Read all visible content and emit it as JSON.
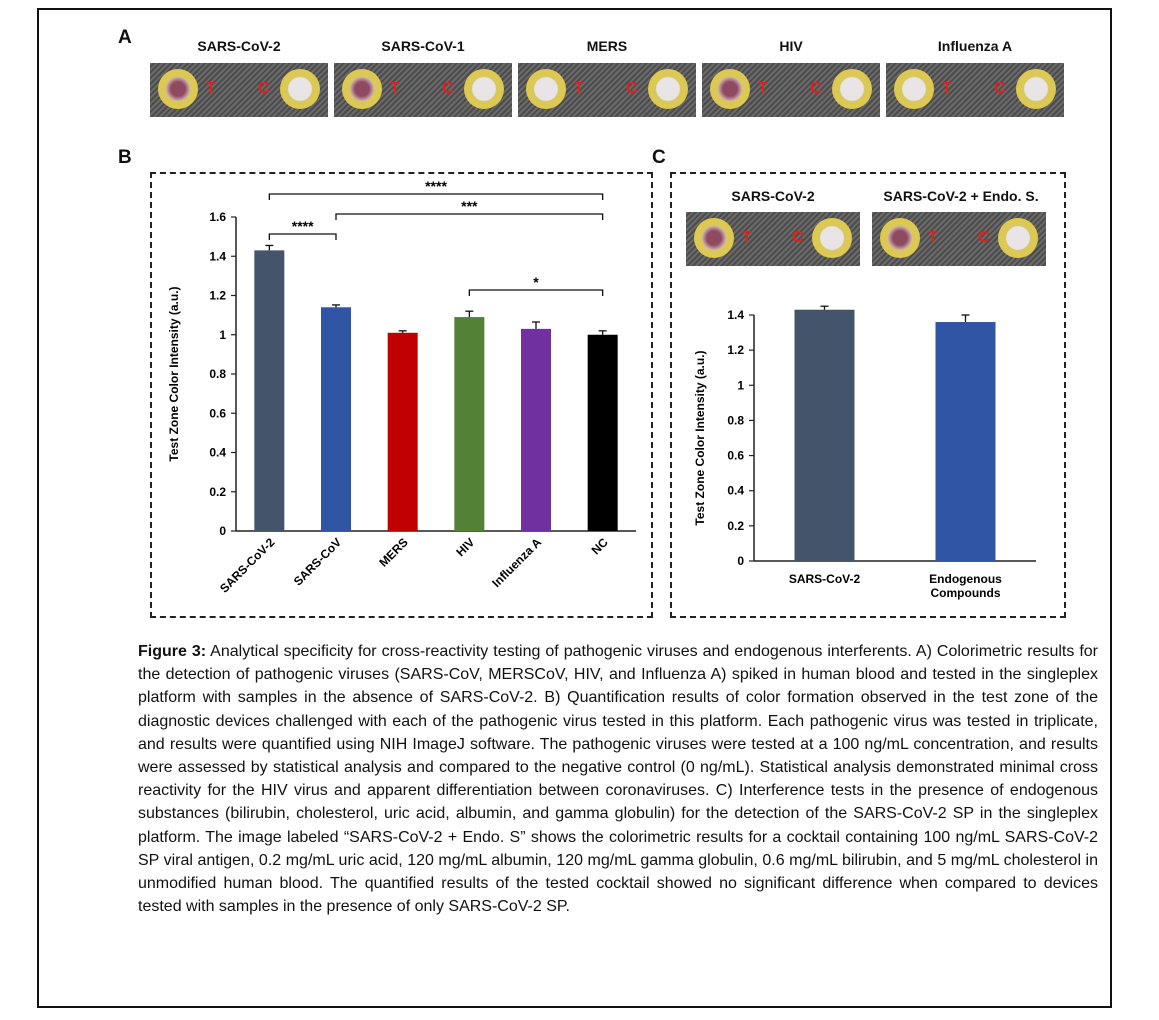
{
  "panel_a": {
    "label": "A",
    "viruses": [
      "SARS-CoV-2",
      "SARS-CoV-1",
      "MERS",
      "HIV",
      "Influenza A"
    ],
    "test_letter": "T",
    "control_letter": "C"
  },
  "panel_c_images": {
    "titles": [
      "SARS-CoV-2",
      "SARS-CoV-2 + Endo. S."
    ],
    "test_letter": "T",
    "control_letter": "C"
  },
  "chart_data": [
    {
      "panel": "B",
      "type": "bar",
      "categories": [
        "SARS-CoV-2",
        "SARS-CoV",
        "MERS",
        "HIV",
        "Influenza A",
        "NC"
      ],
      "values": [
        1.43,
        1.14,
        1.01,
        1.09,
        1.03,
        1.0
      ],
      "errors": [
        0.025,
        0.012,
        0.01,
        0.03,
        0.035,
        0.02
      ],
      "colors": [
        "#44546a",
        "#2f55a4",
        "#c00000",
        "#538135",
        "#7030a0",
        "#000000"
      ],
      "ylabel": "Test Zone Color Intensity (a.u.)",
      "ylim": [
        0,
        1.6
      ],
      "yticks": [
        "0",
        "0.2",
        "0.4",
        "0.6",
        "0.8",
        "1",
        "1.2",
        "1.4",
        "1.6"
      ],
      "significance": [
        {
          "from": 0,
          "to": 5,
          "label": "****"
        },
        {
          "from": 1,
          "to": 5,
          "label": "***"
        },
        {
          "from": 0,
          "to": 1,
          "label": "****"
        },
        {
          "from": 3,
          "to": 5,
          "label": "*"
        }
      ],
      "grid": false
    },
    {
      "panel": "C",
      "type": "bar",
      "categories": [
        "SARS-CoV-2",
        "Endogenous Compounds"
      ],
      "values": [
        1.43,
        1.36
      ],
      "errors": [
        0.02,
        0.04
      ],
      "colors": [
        "#44546a",
        "#2f55a4"
      ],
      "ylabel": "Test Zone Color Intensity (a.u.)",
      "ylim": [
        0,
        1.4
      ],
      "yticks": [
        "0",
        "0.2",
        "0.4",
        "0.6",
        "0.8",
        "1",
        "1.2",
        "1.4"
      ],
      "grid": false
    }
  ],
  "caption": {
    "label": "Figure 3:",
    "text": " Analytical specificity for cross-reactivity testing of pathogenic viruses and endogenous interferents. A) Colorimetric results for the detection of pathogenic viruses (SARS-CoV, MERSCoV, HIV, and Influenza A) spiked in human blood and tested in the singleplex platform with samples in the absence of SARS-CoV-2. B) Quantification results of color formation observed in the test zone of the diagnostic devices challenged with each of the pathogenic virus tested in this platform. Each pathogenic virus was tested in triplicate, and results were quantified using NIH ImageJ software. The pathogenic viruses were tested at a 100 ng/mL concentration, and results were assessed by statistical analysis and compared to the negative control (0 ng/mL). Statistical analysis demonstrated minimal cross reactivity for the HIV virus and apparent differentiation between coronaviruses. C) Interference tests in the presence of endogenous substances (bilirubin, cholesterol, uric acid, albumin, and gamma globulin) for the detection of the SARS-CoV-2 SP in the singleplex platform. The image labeled “SARS-CoV-2 + Endo. S” shows the colorimetric results for a cocktail containing 100 ng/mL SARS-CoV-2 SP viral antigen, 0.2 mg/mL uric acid, 120 mg/mL albumin, 120 mg/mL gamma globulin, 0.6 mg/mL bilirubin, and 5 mg/mL cholesterol in unmodified human blood. The quantified results of the tested cocktail showed no significant difference when compared to devices tested with samples in the presence of only SARS-CoV-2 SP."
  }
}
